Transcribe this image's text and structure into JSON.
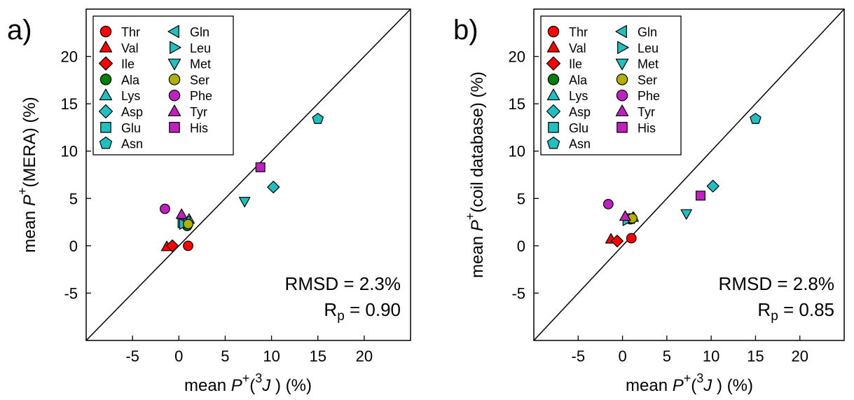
{
  "chart_data": [
    {
      "type": "scatter",
      "panel_label": "a)",
      "xlim": [
        -10,
        25
      ],
      "ylim": [
        -10,
        25
      ],
      "xticks": [
        -5,
        0,
        5,
        10,
        15,
        20
      ],
      "yticks": [
        -5,
        0,
        5,
        10,
        15,
        20
      ],
      "tick_labels": [
        "-5",
        "0",
        "5",
        "10",
        "15",
        "20"
      ],
      "xlabel": {
        "pre": "mean ",
        "italic": "P",
        "sup": "+",
        "mid": "(",
        "sup2": "3",
        "italic2": "J",
        "post": " )  (%)"
      },
      "ylabel": {
        "pre": "mean ",
        "italic": "P",
        "sup": "+",
        "post": "(MERA)  (%)"
      },
      "diagonal": true,
      "stats": {
        "rmsd": "RMSD = 2.3%",
        "rp_main": "R",
        "rp_sub": "p",
        "rp_value": " = 0.90"
      },
      "legend_placement": "top-left",
      "series": [
        {
          "name": "Thr",
          "marker": "circle",
          "color": "#ff0000",
          "x": 1.0,
          "y": 0.0
        },
        {
          "name": "Val",
          "marker": "triangle-up",
          "color": "#ff0000",
          "x": -1.3,
          "y": -0.1
        },
        {
          "name": "Ile",
          "marker": "diamond",
          "color": "#ff0000",
          "x": -0.7,
          "y": 0.0
        },
        {
          "name": "Ala",
          "marker": "circle",
          "color": "#008000",
          "x": 0.9,
          "y": 2.1
        },
        {
          "name": "Lys",
          "marker": "triangle-up",
          "color": "#20c0c0",
          "x": 1.1,
          "y": 2.8
        },
        {
          "name": "Asp",
          "marker": "diamond",
          "color": "#20c0c0",
          "x": 10.2,
          "y": 6.2
        },
        {
          "name": "Glu",
          "marker": "square",
          "color": "#20c0c0",
          "x": 0.4,
          "y": 2.4
        },
        {
          "name": "Asn",
          "marker": "pentagon",
          "color": "#20c0c0",
          "x": 15.0,
          "y": 13.4
        },
        {
          "name": "Gln",
          "marker": "triangle-left",
          "color": "#20c0c0",
          "x": 0.8,
          "y": 2.6
        },
        {
          "name": "Leu",
          "marker": "triangle-right",
          "color": "#20c0c0",
          "x": 0.5,
          "y": 2.3
        },
        {
          "name": "Met",
          "marker": "triangle-down",
          "color": "#20c0c0",
          "x": 7.1,
          "y": 4.7
        },
        {
          "name": "Ser",
          "marker": "circle",
          "color": "#b0b000",
          "x": 1.0,
          "y": 2.3
        },
        {
          "name": "Phe",
          "marker": "circle",
          "color": "#c020c0",
          "x": -1.5,
          "y": 3.9
        },
        {
          "name": "Tyr",
          "marker": "triangle-up",
          "color": "#c020c0",
          "x": 0.3,
          "y": 3.3
        },
        {
          "name": "His",
          "marker": "square",
          "color": "#c020c0",
          "x": 8.8,
          "y": 8.3
        }
      ]
    },
    {
      "type": "scatter",
      "panel_label": "b)",
      "xlim": [
        -10,
        25
      ],
      "ylim": [
        -10,
        25
      ],
      "xticks": [
        -5,
        0,
        5,
        10,
        15,
        20
      ],
      "yticks": [
        -5,
        0,
        5,
        10,
        15,
        20
      ],
      "tick_labels": [
        "-5",
        "0",
        "5",
        "10",
        "15",
        "20"
      ],
      "xlabel": {
        "pre": "mean ",
        "italic": "P",
        "sup": "+",
        "mid": "(",
        "sup2": "3",
        "italic2": "J",
        "post": " )  (%)"
      },
      "ylabel": {
        "pre": "mean ",
        "italic": "P",
        "sup": "+",
        "post": "(coil database)  (%)"
      },
      "diagonal": true,
      "stats": {
        "rmsd": "RMSD = 2.8%",
        "rp_main": "R",
        "rp_sub": "p",
        "rp_value": " = 0.85"
      },
      "legend_placement": "top-left",
      "series": [
        {
          "name": "Thr",
          "marker": "circle",
          "color": "#ff0000",
          "x": 1.0,
          "y": 0.8
        },
        {
          "name": "Val",
          "marker": "triangle-up",
          "color": "#ff0000",
          "x": -1.3,
          "y": 0.7
        },
        {
          "name": "Ile",
          "marker": "diamond",
          "color": "#ff0000",
          "x": -0.6,
          "y": 0.5
        },
        {
          "name": "Ala",
          "marker": "circle",
          "color": "#008000",
          "x": 0.9,
          "y": 2.8
        },
        {
          "name": "Lys",
          "marker": "triangle-up",
          "color": "#20c0c0",
          "x": 1.2,
          "y": 3.0
        },
        {
          "name": "Asp",
          "marker": "diamond",
          "color": "#20c0c0",
          "x": 10.2,
          "y": 6.3
        },
        {
          "name": "Glu",
          "marker": "square",
          "color": "#20c0c0",
          "x": 0.6,
          "y": 2.9
        },
        {
          "name": "Asn",
          "marker": "pentagon",
          "color": "#20c0c0",
          "x": 15.0,
          "y": 13.4
        },
        {
          "name": "Gln",
          "marker": "triangle-left",
          "color": "#20c0c0",
          "x": 0.9,
          "y": 2.9
        },
        {
          "name": "Leu",
          "marker": "triangle-right",
          "color": "#20c0c0",
          "x": 0.5,
          "y": 2.7
        },
        {
          "name": "Met",
          "marker": "triangle-down",
          "color": "#20c0c0",
          "x": 7.2,
          "y": 3.4
        },
        {
          "name": "Ser",
          "marker": "circle",
          "color": "#b0b000",
          "x": 1.1,
          "y": 2.9
        },
        {
          "name": "Phe",
          "marker": "circle",
          "color": "#c020c0",
          "x": -1.6,
          "y": 4.4
        },
        {
          "name": "Tyr",
          "marker": "triangle-up",
          "color": "#c020c0",
          "x": 0.3,
          "y": 3.1
        },
        {
          "name": "His",
          "marker": "square",
          "color": "#c020c0",
          "x": 8.8,
          "y": 5.3
        }
      ]
    }
  ]
}
